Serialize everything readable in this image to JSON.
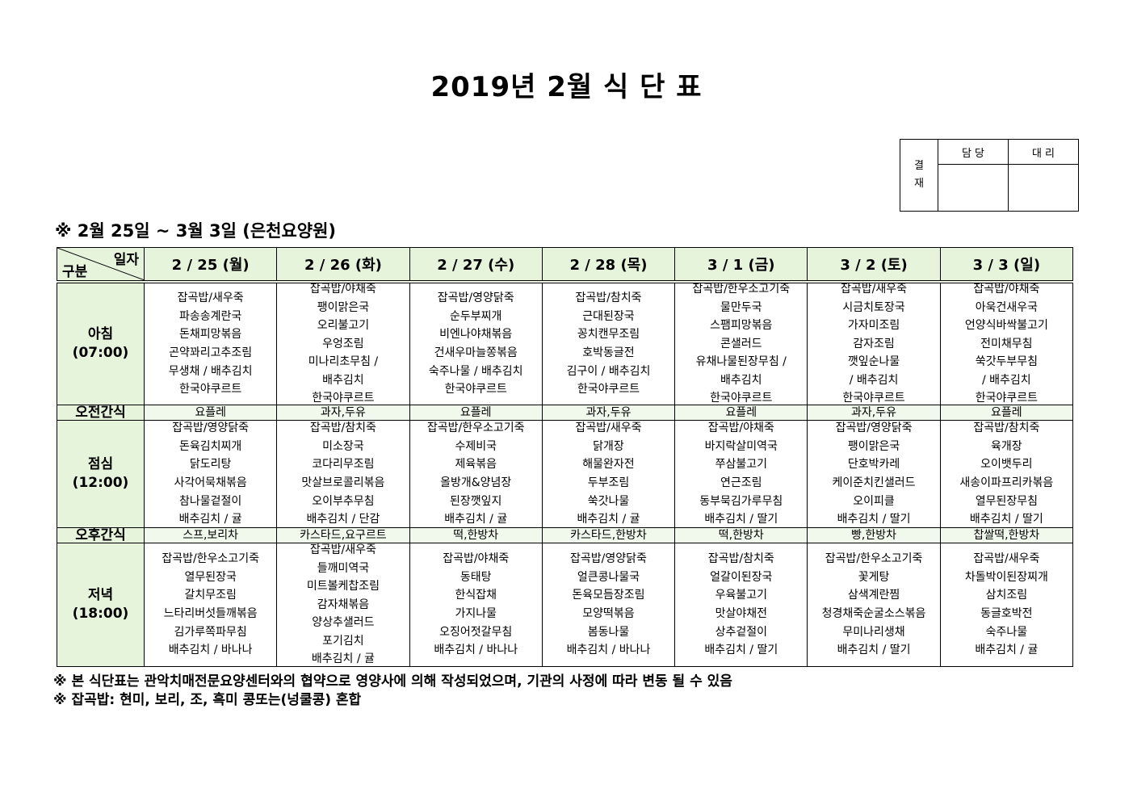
{
  "title": "2019년 2월 식 단 표",
  "approval": {
    "label": "결\n재",
    "label_top": "결",
    "label_bottom": "재",
    "col1": "담 당",
    "col2": "대 리"
  },
  "subtitle": "※ 2월 25일 ~ 3월 3일 (은천요양원)",
  "table": {
    "corner_top": "일자",
    "corner_bottom": "구분",
    "days": [
      "2 / 25 (월)",
      "2 / 26 (화)",
      "2 / 27 (수)",
      "2 / 28 (목)",
      "3 / 1 (금)",
      "3 / 2 (토)",
      "3 / 3 (일)"
    ],
    "rows": [
      {
        "label": "아침",
        "time": "(07:00)",
        "type": "meal",
        "cells": [
          [
            "잡곡밥/새우죽",
            "파송송계란국",
            "돈채피망볶음",
            "곤약꽈리고추조림",
            "무생채 / 배추김치",
            "한국야쿠르트"
          ],
          [
            "잡곡밥/야채죽",
            "팽이맑은국",
            "오리불고기",
            "우엉조림",
            "미나리초무침 /",
            "배추김치",
            "한국야쿠르트"
          ],
          [
            "잡곡밥/영양닭죽",
            "순두부찌개",
            "비엔나야채볶음",
            "건새우마늘쫑볶음",
            "숙주나물 / 배추김치",
            "한국야쿠르트"
          ],
          [
            "잡곡밥/참치죽",
            "근대된장국",
            "꽁치캔무조림",
            "호박동글전",
            "김구이 / 배추김치",
            "한국야쿠르트"
          ],
          [
            "잡곡밥/한우소고기죽",
            "물만두국",
            "스팸피망볶음",
            "콘샐러드",
            "유채나물된장무침 /",
            "배추김치",
            "한국야쿠르트"
          ],
          [
            "잡곡밥/새우죽",
            "시금치토장국",
            "가자미조림",
            "감자조림",
            "깻잎순나물",
            "/ 배추김치",
            "한국야쿠르트"
          ],
          [
            "잡곡밥/야채죽",
            "아욱건새우국",
            "언양식바싹불고기",
            "전미채무침",
            "쑥갓두부무침",
            "/ 배추김치",
            "한국야쿠르트"
          ]
        ]
      },
      {
        "label": "오전간식",
        "type": "snack",
        "cells": [
          "요플레",
          "과자,두유",
          "요플레",
          "과자,두유",
          "요플레",
          "과자,두유",
          "요플레"
        ]
      },
      {
        "label": "점심",
        "time": "(12:00)",
        "type": "meal",
        "cells": [
          [
            "잡곡밥/영양닭죽",
            "돈육김치찌개",
            "닭도리탕",
            "사각어묵채볶음",
            "참나물겉절이",
            "배추김치 / 귤"
          ],
          [
            "잡곡밥/참치죽",
            "미소장국",
            "코다리무조림",
            "맛살브로콜리볶음",
            "오이부추무침",
            "배추김치 / 단감"
          ],
          [
            "잡곡밥/한우소고기죽",
            "수제비국",
            "제육볶음",
            "올방개&양념장",
            "된장깻잎지",
            "배추김치 / 귤"
          ],
          [
            "잡곡밥/새우죽",
            "닭개장",
            "해물완자전",
            "두부조림",
            "쑥갓나물",
            "배추김치 / 귤"
          ],
          [
            "잡곡밥/야채죽",
            "바지락살미역국",
            "쭈삼불고기",
            "연근조림",
            "동부묵김가루무침",
            "배추김치 / 딸기"
          ],
          [
            "잡곡밥/영양닭죽",
            "팽이맑은국",
            "단호박카레",
            "케이준치킨샐러드",
            "오이피클",
            "배추김치 / 딸기"
          ],
          [
            "잡곡밥/참치죽",
            "육개장",
            "오이뱃두리",
            "새송이파프리카볶음",
            "열무된장무침",
            "배추김치 / 딸기"
          ]
        ]
      },
      {
        "label": "오후간식",
        "type": "snack",
        "cells": [
          "스프,보리차",
          "카스타드,요구르트",
          "떡,한방차",
          "카스타드,한방차",
          "떡,한방차",
          "빵,한방차",
          "찹쌀떡,한방차"
        ]
      },
      {
        "label": "저녁",
        "time": "(18:00)",
        "type": "meal",
        "cells": [
          [
            "잡곡밥/한우소고기죽",
            "열무된장국",
            "갈치무조림",
            "느타리버섯들깨볶음",
            "김가루쪽파무침",
            "배추김치 / 바나나"
          ],
          [
            "잡곡밥/새우죽",
            "들깨미역국",
            "미트볼케찹조림",
            "감자채볶음",
            "양상추샐러드",
            "포기김치",
            "배추김치 / 귤"
          ],
          [
            "잡곡밥/야채죽",
            "동태탕",
            "한식잡채",
            "가지나물",
            "오징어젓갈무침",
            "배추김치 / 바나나"
          ],
          [
            "잡곡밥/영양닭죽",
            "얼큰콩나물국",
            "돈육모듬장조림",
            "모양떡볶음",
            "봄동나물",
            "배추김치 / 바나나"
          ],
          [
            "잡곡밥/참치죽",
            "얼갈이된장국",
            "우육불고기",
            "맛살야채전",
            "상추겉절이",
            "배추김치 / 딸기"
          ],
          [
            "잡곡밥/한우소고기죽",
            "꽃게탕",
            "삼색계란찜",
            "청경채죽순굴소스볶음",
            "무미나리생채",
            "배추김치 / 딸기"
          ],
          [
            "잡곡밥/새우죽",
            "차돌박이된장찌개",
            "삼치조림",
            "동글호박전",
            "숙주나물",
            "배추김치 / 귤"
          ]
        ]
      }
    ]
  },
  "notes": [
    "※ 본 식단표는 관악치매전문요양센터와의 협약으로 영양사에 의해 작성되었으며, 기관의 사정에 따라 변동 될 수 있음",
    "※ 잡곡밥: 현미, 보리, 조, 흑미 콩또는(넝쿨콩) 혼합"
  ],
  "colors": {
    "header_bg": "#e6f4dc",
    "snack_bg": "#f1f9ec"
  }
}
